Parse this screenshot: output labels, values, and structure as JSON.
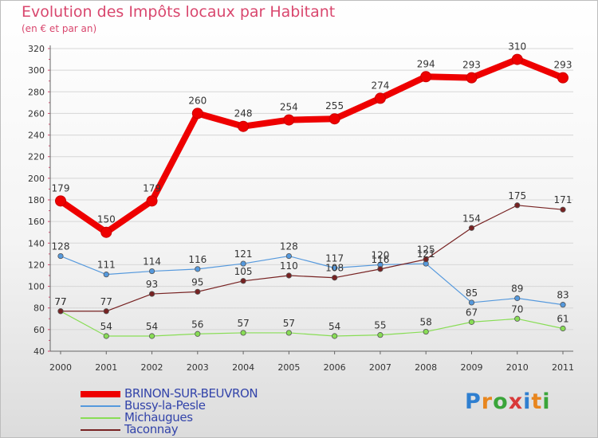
{
  "title": "Evolution des Impôts locaux par Habitant",
  "subtitle": "(en € et par an)",
  "brand": {
    "letters": [
      "P",
      "r",
      "o",
      "x",
      "i",
      "t",
      "i"
    ],
    "colors": [
      "#2f7fd0",
      "#e8861e",
      "#3aa53a",
      "#d83a3a",
      "#2f7fd0",
      "#e8861e",
      "#3aa53a"
    ]
  },
  "chart_data": {
    "type": "line",
    "x": [
      "2000",
      "2001",
      "2002",
      "2003",
      "2004",
      "2005",
      "2006",
      "2007",
      "2008",
      "2009",
      "2010",
      "2011"
    ],
    "ylim": [
      40,
      320
    ],
    "yticks": [
      40,
      60,
      80,
      100,
      120,
      140,
      160,
      180,
      200,
      220,
      240,
      260,
      280,
      300,
      320
    ],
    "grid": "horizontal",
    "legend_position": "bottom-left",
    "series": [
      {
        "name": "BRINON-SUR-BEUVRON",
        "color": "#ee0000",
        "values": [
          179,
          150,
          179,
          260,
          248,
          254,
          255,
          274,
          294,
          293,
          310,
          293
        ]
      },
      {
        "name": "Bussy-la-Pesle",
        "color": "#5599dd",
        "values": [
          128,
          111,
          114,
          116,
          121,
          128,
          117,
          120,
          121,
          85,
          89,
          83
        ]
      },
      {
        "name": "Michaugues",
        "color": "#88dd55",
        "values": [
          77,
          54,
          54,
          56,
          57,
          57,
          54,
          55,
          58,
          67,
          70,
          61
        ]
      },
      {
        "name": "Taconnay",
        "color": "#772222",
        "values": [
          77,
          77,
          93,
          95,
          105,
          110,
          108,
          116,
          125,
          154,
          175,
          171
        ]
      }
    ]
  }
}
